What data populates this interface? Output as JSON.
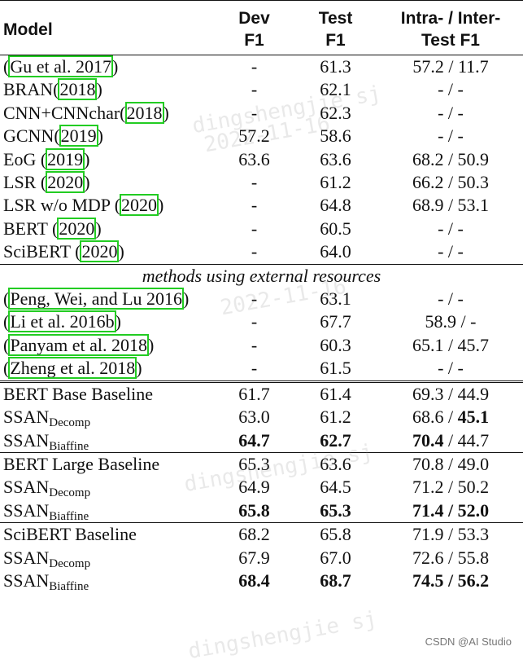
{
  "table": {
    "headers": {
      "model": "Model",
      "dev": [
        "Dev",
        "F1"
      ],
      "test": [
        "Test",
        "F1"
      ],
      "intra": [
        "Intra- / Inter-",
        "Test F1"
      ]
    },
    "section1": [
      {
        "pre": "(",
        "cite": "Gu et al. 2017",
        "post": ")",
        "dev": "-",
        "test": "61.3",
        "intra": "57.2 / 11.7"
      },
      {
        "pre": "BRAN(",
        "cite": "2018",
        "post": ")",
        "dev": "-",
        "test": "62.1",
        "intra": "- / -"
      },
      {
        "pre": "CNN+CNNchar(",
        "cite": "2018",
        "post": ")",
        "dev": "-",
        "test": "62.3",
        "intra": "- / -"
      },
      {
        "pre": "GCNN(",
        "cite": "2019",
        "post": ")",
        "dev": "57.2",
        "test": "58.6",
        "intra": "- / -"
      },
      {
        "pre": "EoG (",
        "cite": "2019",
        "post": ")",
        "dev": "63.6",
        "test": "63.6",
        "intra": "68.2 / 50.9"
      },
      {
        "pre": "LSR (",
        "cite": "2020",
        "post": ")",
        "dev": "-",
        "test": "61.2",
        "intra": "66.2 / 50.3"
      },
      {
        "pre": "LSR w/o MDP (",
        "cite": "2020",
        "post": ")",
        "dev": "-",
        "test": "64.8",
        "intra": "68.9 / 53.1"
      },
      {
        "pre": "BERT (",
        "cite": "2020",
        "post": ")",
        "dev": "-",
        "test": "60.5",
        "intra": "- / -"
      },
      {
        "pre": "SciBERT (",
        "cite": "2020",
        "post": ")",
        "dev": "-",
        "test": "64.0",
        "intra": "- / -"
      }
    ],
    "external_caption": "methods using external resources",
    "section2": [
      {
        "pre": "(",
        "cite": "Peng, Wei, and Lu 2016",
        "post": ")",
        "dev": "-",
        "test": "63.1",
        "intra": "- / -"
      },
      {
        "pre": "(",
        "cite": "Li et al. 2016b",
        "post": ")",
        "dev": "-",
        "test": "67.7",
        "intra": "58.9 / -"
      },
      {
        "pre": "(",
        "cite": "Panyam et al. 2018",
        "post": ")",
        "dev": "-",
        "test": "60.3",
        "intra": "65.1 / 45.7"
      },
      {
        "pre": "(",
        "cite": "Zheng et al. 2018",
        "post": ")",
        "dev": "-",
        "test": "61.5",
        "intra": "- / -"
      }
    ],
    "base": {
      "baseline": {
        "name": "BERT Base Baseline",
        "dev": "61.7",
        "test": "61.4",
        "intra": "69.3",
        "inter": "44.9"
      },
      "decomp": {
        "name": "SSAN",
        "sub": "Decomp",
        "dev": "63.0",
        "test": "61.2",
        "intra": "68.6",
        "inter": "45.1"
      },
      "biaffine": {
        "name": "SSAN",
        "sub": "Biaffine",
        "dev": "64.7",
        "test": "62.7",
        "intra": "70.4",
        "inter": "44.7"
      }
    },
    "large": {
      "baseline": {
        "name": "BERT Large Baseline",
        "dev": "65.3",
        "test": "63.6",
        "intra": "70.8",
        "inter": "49.0"
      },
      "decomp": {
        "name": "SSAN",
        "sub": "Decomp",
        "dev": "64.9",
        "test": "64.5",
        "intra": "71.2",
        "inter": "50.2"
      },
      "biaffine": {
        "name": "SSAN",
        "sub": "Biaffine",
        "dev": "65.8",
        "test": "65.3",
        "intra": "71.4",
        "inter": "52.0"
      }
    },
    "sci": {
      "baseline": {
        "name": "SciBERT Baseline",
        "dev": "68.2",
        "test": "65.8",
        "intra": "71.9",
        "inter": "53.3"
      },
      "decomp": {
        "name": "SSAN",
        "sub": "Decomp",
        "dev": "67.9",
        "test": "67.0",
        "intra": "72.6",
        "inter": "55.8"
      },
      "biaffine": {
        "name": "SSAN",
        "sub": "Biaffine",
        "dev": "68.4",
        "test": "68.7",
        "intra": "74.5",
        "inter": "56.2"
      }
    },
    "separator": " / "
  },
  "watermarks": {
    "text1": "dingshengjie sj",
    "text2": "2022-11-16"
  },
  "csdn_mark": "CSDN @AI Studio"
}
